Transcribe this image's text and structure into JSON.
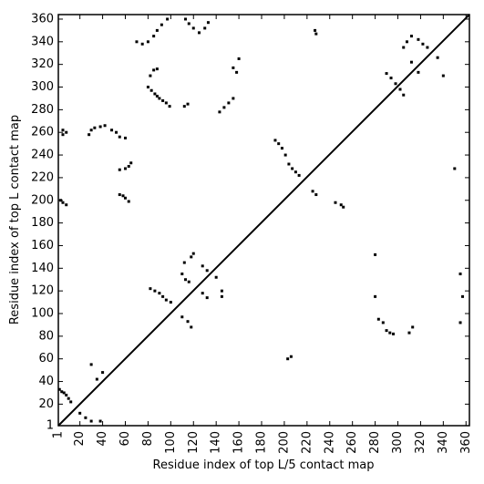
{
  "chart_data": {
    "type": "scatter",
    "xlabel": "Residue index of top L/5 contact map",
    "ylabel": "Residue index of top L contact map",
    "xlim": [
      1,
      363
    ],
    "ylim": [
      1,
      364
    ],
    "xticks": [
      1,
      20,
      40,
      60,
      80,
      100,
      120,
      140,
      160,
      180,
      200,
      220,
      240,
      260,
      280,
      300,
      320,
      340,
      360
    ],
    "yticks": [
      1,
      20,
      40,
      60,
      80,
      100,
      120,
      140,
      160,
      180,
      200,
      220,
      240,
      260,
      280,
      300,
      320,
      340,
      360
    ],
    "diagonal_color": "#000000",
    "series": [
      {
        "color": "#000000",
        "x": [
          2,
          4,
          6,
          8,
          10,
          12,
          5,
          5,
          8,
          3,
          5,
          8,
          28,
          30,
          33,
          38,
          42,
          48,
          52,
          55,
          60,
          55,
          60,
          63,
          65,
          55,
          58,
          60,
          63,
          80,
          83,
          86,
          88,
          90,
          93,
          96,
          99,
          82,
          85,
          88,
          80,
          85,
          88,
          92,
          97,
          75,
          70,
          113,
          116,
          120,
          125,
          130,
          133,
          112,
          115,
          143,
          147,
          151,
          155,
          155,
          158,
          160,
          192,
          195,
          198,
          201,
          204,
          207,
          210,
          213,
          225,
          228,
          227,
          228,
          245,
          250,
          252,
          82,
          86,
          90,
          93,
          96,
          100,
          110,
          113,
          116,
          112,
          118,
          120,
          128,
          132,
          128,
          132,
          145,
          145,
          140,
          30,
          35,
          40,
          20,
          25,
          30,
          38,
          110,
          115,
          118,
          203,
          206,
          280,
          283,
          287,
          290,
          293,
          296,
          310,
          313,
          290,
          294,
          298,
          302,
          305,
          305,
          308,
          312,
          318,
          322,
          326,
          312,
          318,
          335,
          340,
          350,
          355,
          357,
          355,
          280
        ],
        "y": [
          33,
          31,
          30,
          28,
          25,
          22,
          258,
          262,
          260,
          200,
          198,
          196,
          258,
          262,
          264,
          265,
          266,
          262,
          260,
          256,
          255,
          227,
          228,
          230,
          233,
          205,
          204,
          202,
          199,
          300,
          297,
          294,
          292,
          290,
          288,
          286,
          283,
          310,
          315,
          316,
          340,
          345,
          350,
          355,
          360,
          338,
          340,
          360,
          356,
          352,
          348,
          352,
          357,
          283,
          285,
          278,
          282,
          286,
          290,
          317,
          313,
          325,
          253,
          250,
          246,
          240,
          232,
          228,
          225,
          222,
          208,
          205,
          350,
          347,
          198,
          196,
          194,
          122,
          120,
          118,
          115,
          112,
          110,
          135,
          130,
          128,
          145,
          150,
          153,
          142,
          138,
          118,
          114,
          120,
          115,
          132,
          55,
          42,
          48,
          12,
          8,
          5,
          5,
          97,
          93,
          88,
          60,
          62,
          115,
          95,
          92,
          85,
          83,
          82,
          83,
          88,
          312,
          308,
          303,
          298,
          293,
          335,
          340,
          345,
          342,
          338,
          335,
          322,
          313,
          326,
          310,
          228,
          135,
          115,
          92,
          152
        ]
      }
    ]
  }
}
